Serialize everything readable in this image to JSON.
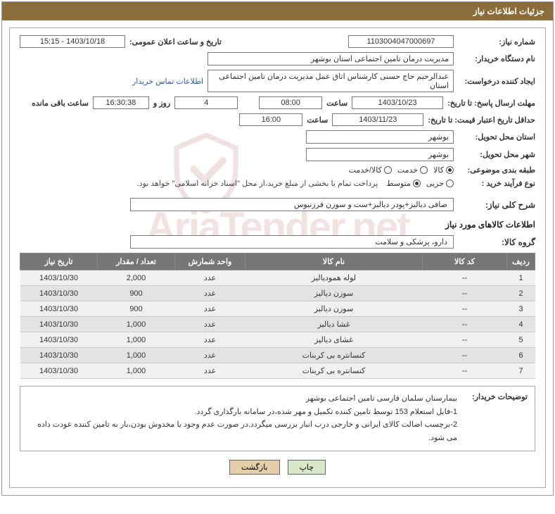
{
  "title_bar": "جزئیات اطلاعات نیاز",
  "labels": {
    "need_no": "شماره نیاز:",
    "announce_dt": "تاریخ و ساعت اعلان عمومی:",
    "buyer_org": "نام دستگاه خریدار:",
    "requester": "ایجاد کننده درخواست:",
    "contact_link": "اطلاعات تماس خریدار",
    "deadline_reply": "مهلت ارسال پاسخ: تا تاریخ:",
    "time_word": "ساعت",
    "days_and": "روز و",
    "remaining": "ساعت باقی مانده",
    "min_valid": "حداقل تاریخ اعتبار قیمت: تا تاریخ:",
    "deliver_prov": "استان محل تحویل:",
    "deliver_city": "شهر محل تحویل:",
    "subject_class": "طبقه بندی موضوعی:",
    "purchase_type": "نوع فرآیند خرید :",
    "pay_note": "پرداخت تمام یا بخشی از مبلغ خرید،از محل \"اسناد خزانه اسلامی\" خواهد بود.",
    "overall_desc": "شرح کلی نیاز:",
    "items_hdr": "اطلاعات کالاهای مورد نیاز",
    "group": "گروه کالا:",
    "buyer_notes_lbl": "توضیحات خریدار:"
  },
  "values": {
    "need_no": "1103004047000697",
    "announce_dt": "1403/10/18 - 15:15",
    "buyer_org": "مدیریت درمان تامین اجتماعی استان بوشهر",
    "requester": "عبدالرحیم حاج حسنی کارشناس اتاق عمل مدیریت درمان تامین اجتماعی استان",
    "reply_date": "1403/10/23",
    "reply_time": "08:00",
    "days_left": "4",
    "timer": "16:30:38",
    "valid_date": "1403/11/23",
    "valid_time": "16:00",
    "province": "بوشهر",
    "city": "بوشهر",
    "overall_desc": "صافی دیالیز+پودر دیالیز+ست و سوزن فرزنیوس",
    "group": "دارو، پزشکی و سلامت"
  },
  "subject_options": [
    {
      "label": "کالا",
      "selected": true
    },
    {
      "label": "خدمت",
      "selected": false
    },
    {
      "label": "کالا/خدمت",
      "selected": false
    }
  ],
  "purchase_options": [
    {
      "label": "جزیی",
      "selected": false
    },
    {
      "label": "متوسط",
      "selected": true
    }
  ],
  "table": {
    "headers": [
      "ردیف",
      "کد کالا",
      "نام کالا",
      "واحد شمارش",
      "تعداد / مقدار",
      "تاریخ نیاز"
    ],
    "col_widths": [
      "40px",
      "120px",
      "auto",
      "100px",
      "110px",
      "110px"
    ],
    "rows": [
      {
        "idx": "1",
        "code": "--",
        "name": "لوله همودیالیز",
        "unit": "عدد",
        "qty": "2,000",
        "date": "1403/10/30"
      },
      {
        "idx": "2",
        "code": "--",
        "name": "سوزن دیالیز",
        "unit": "عدد",
        "qty": "900",
        "date": "1403/10/30"
      },
      {
        "idx": "3",
        "code": "--",
        "name": "سوزن دیالیز",
        "unit": "عدد",
        "qty": "900",
        "date": "1403/10/30"
      },
      {
        "idx": "4",
        "code": "--",
        "name": "غشا دیالیز",
        "unit": "عدد",
        "qty": "1,000",
        "date": "1403/10/30"
      },
      {
        "idx": "5",
        "code": "--",
        "name": "غشای دیالیز",
        "unit": "عدد",
        "qty": "1,000",
        "date": "1403/10/30"
      },
      {
        "idx": "6",
        "code": "--",
        "name": "کنسانتره بی کربنات",
        "unit": "عدد",
        "qty": "1,000",
        "date": "1403/10/30"
      },
      {
        "idx": "7",
        "code": "--",
        "name": "کنسانتره بی کربنات",
        "unit": "عدد",
        "qty": "1,000",
        "date": "1403/10/30"
      }
    ]
  },
  "buyer_notes": "بیمارستان سلمان فارسی تامین اجتماعی بوشهر\n1-فایل استعلام 153 توسط تامین کننده تکمیل و مهر شده،در سامانه بارگذاری گردد.\n2-برچسب اصالت کالای ایرانی و خارجی درب انبار بررسی میگردد.در صورت عدم وجود یا مخدوش بودن،بار به تامین کننده عودت داده می شود.",
  "buttons": {
    "print": "چاپ",
    "back": "بازگشت"
  },
  "watermark_text": "AriaTender.net",
  "colors": {
    "title_bg": "#8a6d3b",
    "th_bg": "#777777",
    "row_odd": "#f0f0f0",
    "row_even": "#e3e3e3"
  }
}
